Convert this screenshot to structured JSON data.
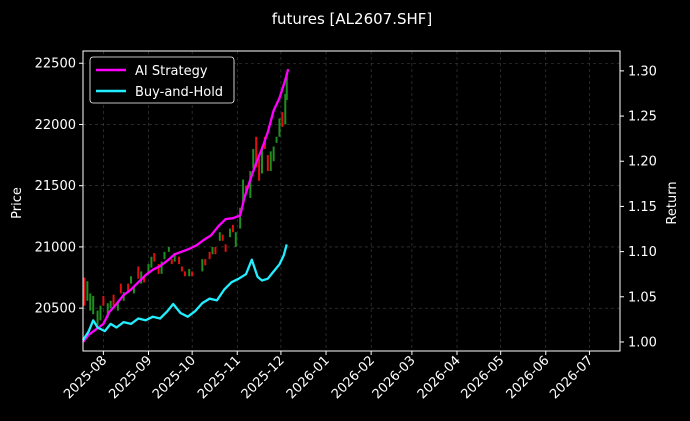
{
  "chart_data": {
    "type": "line",
    "title": "futures [AL2607.SHF]",
    "ylabel_left": "Price",
    "ylabel_right": "Return",
    "grid": true,
    "legend_position": "top-left",
    "xlim": [
      "2025-07-18",
      "2026-07-22"
    ],
    "ylim_left": [
      20150,
      22600
    ],
    "ylim_right": [
      0.99,
      1.322
    ],
    "x_ticks": [
      "2025-08",
      "2025-09",
      "2025-10",
      "2025-11",
      "2025-12",
      "2026-01",
      "2026-02",
      "2026-03",
      "2026-04",
      "2026-05",
      "2026-06",
      "2026-07"
    ],
    "y_ticks_left": [
      20500,
      21000,
      21500,
      22000,
      22500
    ],
    "y_ticks_right": [
      "1.00",
      "1.05",
      "1.10",
      "1.15",
      "1.20",
      "1.25",
      "1.30"
    ],
    "colors": {
      "strategy": "#ff00ff",
      "buyhold": "#22eeff",
      "up": "#1f8f1f",
      "down": "#e01010",
      "grid": "#444444",
      "axis": "#ffffff",
      "background": "#000000"
    },
    "series": [
      {
        "name": "AI Strategy",
        "axis": "right",
        "points": [
          [
            "2025-07-18",
            1.0
          ],
          [
            "2025-07-22",
            1.008
          ],
          [
            "2025-07-27",
            1.014
          ],
          [
            "2025-08-01",
            1.02
          ],
          [
            "2025-08-05",
            1.033
          ],
          [
            "2025-08-10",
            1.042
          ],
          [
            "2025-08-15",
            1.052
          ],
          [
            "2025-08-20",
            1.058
          ],
          [
            "2025-08-25",
            1.066
          ],
          [
            "2025-08-30",
            1.074
          ],
          [
            "2025-09-04",
            1.08
          ],
          [
            "2025-09-09",
            1.084
          ],
          [
            "2025-09-14",
            1.09
          ],
          [
            "2025-09-19",
            1.097
          ],
          [
            "2025-09-24",
            1.1
          ],
          [
            "2025-09-29",
            1.103
          ],
          [
            "2025-10-04",
            1.107
          ],
          [
            "2025-10-09",
            1.113
          ],
          [
            "2025-10-14",
            1.118
          ],
          [
            "2025-10-19",
            1.128
          ],
          [
            "2025-10-24",
            1.136
          ],
          [
            "2025-10-29",
            1.137
          ],
          [
            "2025-11-03",
            1.14
          ],
          [
            "2025-11-06",
            1.16
          ],
          [
            "2025-11-10",
            1.18
          ],
          [
            "2025-11-14",
            1.198
          ],
          [
            "2025-11-18",
            1.214
          ],
          [
            "2025-11-22",
            1.232
          ],
          [
            "2025-11-26",
            1.256
          ],
          [
            "2025-11-30",
            1.27
          ],
          [
            "2025-12-04",
            1.29
          ],
          [
            "2025-12-06",
            1.302
          ]
        ]
      },
      {
        "name": "Buy-and-Hold",
        "axis": "right",
        "points": [
          [
            "2025-07-18",
            1.002
          ],
          [
            "2025-07-22",
            1.012
          ],
          [
            "2025-07-25",
            1.024
          ],
          [
            "2025-07-28",
            1.016
          ],
          [
            "2025-08-02",
            1.012
          ],
          [
            "2025-08-06",
            1.02
          ],
          [
            "2025-08-10",
            1.016
          ],
          [
            "2025-08-15",
            1.022
          ],
          [
            "2025-08-20",
            1.02
          ],
          [
            "2025-08-25",
            1.026
          ],
          [
            "2025-08-30",
            1.024
          ],
          [
            "2025-09-04",
            1.028
          ],
          [
            "2025-09-09",
            1.026
          ],
          [
            "2025-09-14",
            1.034
          ],
          [
            "2025-09-18",
            1.042
          ],
          [
            "2025-09-23",
            1.032
          ],
          [
            "2025-09-28",
            1.028
          ],
          [
            "2025-10-03",
            1.034
          ],
          [
            "2025-10-08",
            1.043
          ],
          [
            "2025-10-13",
            1.048
          ],
          [
            "2025-10-18",
            1.046
          ],
          [
            "2025-10-23",
            1.058
          ],
          [
            "2025-10-28",
            1.066
          ],
          [
            "2025-11-02",
            1.07
          ],
          [
            "2025-11-07",
            1.075
          ],
          [
            "2025-11-11",
            1.091
          ],
          [
            "2025-11-15",
            1.072
          ],
          [
            "2025-11-18",
            1.068
          ],
          [
            "2025-11-22",
            1.07
          ],
          [
            "2025-11-26",
            1.078
          ],
          [
            "2025-11-30",
            1.086
          ],
          [
            "2025-12-03",
            1.096
          ],
          [
            "2025-12-05",
            1.108
          ]
        ]
      }
    ],
    "candles": [
      [
        "2025-07-19",
        20750,
        20520
      ],
      [
        "2025-07-21",
        20560,
        20720
      ],
      [
        "2025-07-23",
        20480,
        20620
      ],
      [
        "2025-07-25",
        20450,
        20600
      ],
      [
        "2025-07-28",
        20360,
        20480
      ],
      [
        "2025-07-30",
        20400,
        20520
      ],
      [
        "2025-08-01",
        20600,
        20520
      ],
      [
        "2025-08-04",
        20420,
        20540
      ],
      [
        "2025-08-06",
        20500,
        20560
      ],
      [
        "2025-08-08",
        20610,
        20520
      ],
      [
        "2025-08-11",
        20480,
        20560
      ],
      [
        "2025-08-13",
        20700,
        20620
      ],
      [
        "2025-08-15",
        20560,
        20630
      ],
      [
        "2025-08-18",
        20700,
        20640
      ],
      [
        "2025-08-20",
        20700,
        20760
      ],
      [
        "2025-08-22",
        20620,
        20680
      ],
      [
        "2025-08-25",
        20840,
        20740
      ],
      [
        "2025-08-27",
        20700,
        20800
      ],
      [
        "2025-08-29",
        20760,
        20710
      ],
      [
        "2025-09-01",
        20780,
        20860
      ],
      [
        "2025-09-03",
        20830,
        20920
      ],
      [
        "2025-09-05",
        20950,
        20880
      ],
      [
        "2025-09-08",
        20860,
        20780
      ],
      [
        "2025-09-10",
        20780,
        20880
      ],
      [
        "2025-09-12",
        20900,
        20960
      ],
      [
        "2025-09-15",
        20960,
        21000
      ],
      [
        "2025-09-17",
        20900,
        20860
      ],
      [
        "2025-09-19",
        20880,
        20950
      ],
      [
        "2025-09-22",
        20920,
        20860
      ],
      [
        "2025-09-24",
        20840,
        20800
      ],
      [
        "2025-09-26",
        20800,
        20760
      ],
      [
        "2025-09-29",
        20760,
        20820
      ],
      [
        "2025-10-01",
        20800,
        20760
      ],
      [
        "2025-10-08",
        20800,
        20900
      ],
      [
        "2025-10-10",
        20900,
        20850
      ],
      [
        "2025-10-13",
        20960,
        20900
      ],
      [
        "2025-10-15",
        20940,
        21000
      ],
      [
        "2025-10-17",
        21000,
        20940
      ],
      [
        "2025-10-20",
        21050,
        21120
      ],
      [
        "2025-10-22",
        21100,
        21050
      ],
      [
        "2025-10-24",
        21020,
        20960
      ],
      [
        "2025-10-27",
        21080,
        21150
      ],
      [
        "2025-10-29",
        21180,
        21120
      ],
      [
        "2025-10-31",
        21000,
        21120
      ],
      [
        "2025-11-03",
        21150,
        21320
      ],
      [
        "2025-11-05",
        21350,
        21550
      ],
      [
        "2025-11-07",
        21500,
        21460
      ],
      [
        "2025-11-10",
        21400,
        21620
      ],
      [
        "2025-11-12",
        21640,
        21800
      ],
      [
        "2025-11-14",
        21900,
        21650
      ],
      [
        "2025-11-16",
        21720,
        21540
      ],
      [
        "2025-11-18",
        21600,
        21820
      ],
      [
        "2025-11-20",
        21900,
        21800
      ],
      [
        "2025-11-22",
        21750,
        21620
      ],
      [
        "2025-11-24",
        21620,
        21780
      ],
      [
        "2025-11-26",
        21700,
        21820
      ],
      [
        "2025-11-28",
        21850,
        21900
      ],
      [
        "2025-11-30",
        21900,
        22050
      ],
      [
        "2025-12-02",
        22100,
        21980
      ],
      [
        "2025-12-04",
        22000,
        22250
      ],
      [
        "2025-12-05",
        22200,
        22420
      ]
    ]
  }
}
